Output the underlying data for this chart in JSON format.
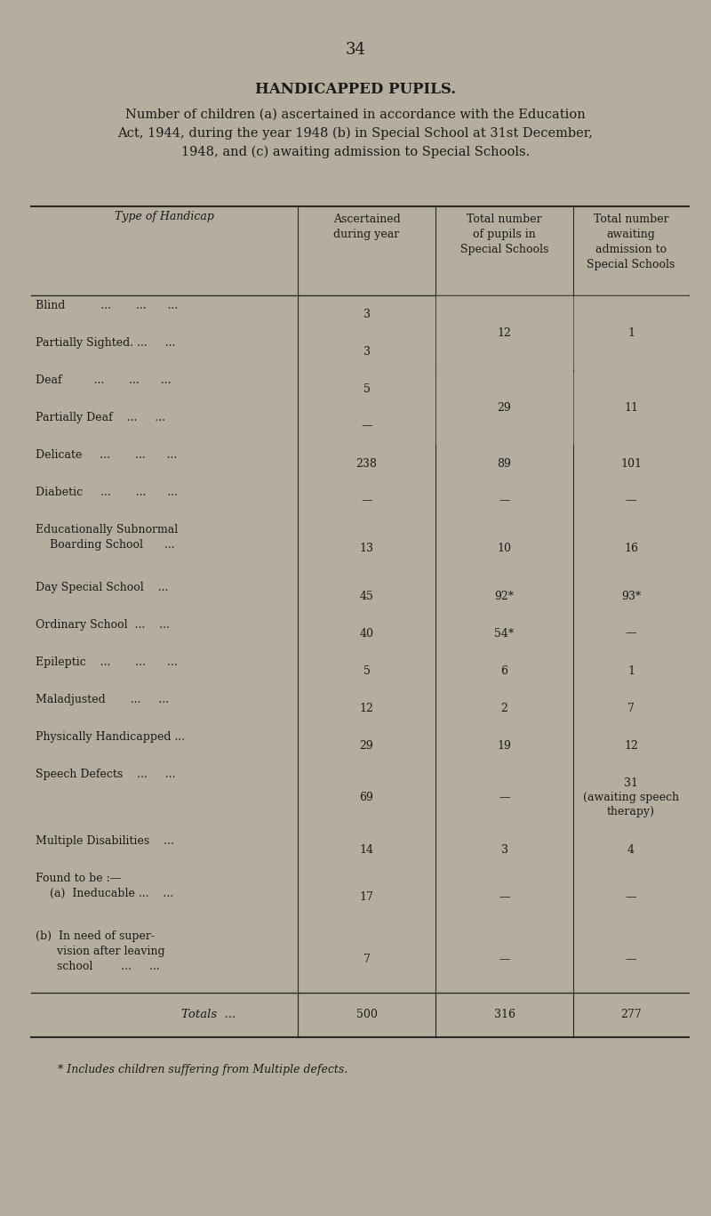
{
  "page_number": "34",
  "title": "HANDICAPPED PUPILS.",
  "subtitle": "Number of children (a) ascertained in accordance with the Education\nAct, 1944, during the year 1948 (b) in Special School at 31st December,\n1948, and (c) awaiting admission to Special Schools.",
  "col_headers": [
    "Type of Handicap",
    "Ascertained\nduring year",
    "Total number\nof pupils in\nSpecial Schools",
    "Total number\nawaiting\nadmission to\nSpecial Schools"
  ],
  "rows": [
    {
      "label": "Blind          ...       ...      ...",
      "col1": "3",
      "col2": "",
      "col3": "",
      "brace_top": true
    },
    {
      "label": "Partially Sighted. ...     ...",
      "col1": "3",
      "col2": "12",
      "col3": "1",
      "brace_bottom": true
    },
    {
      "label": "Deaf         ...       ...      ...",
      "col1": "5",
      "col2": "",
      "col3": "",
      "brace2_top": true
    },
    {
      "label": "Partially Deaf    ...     ...",
      "col1": "—",
      "col2": "29",
      "col3": "11",
      "brace2_bottom": true
    },
    {
      "label": "Delicate     ...       ...      ...",
      "col1": "238",
      "col2": "89",
      "col3": "101"
    },
    {
      "label": "Diabetic     ...       ...      ...",
      "col1": "—",
      "col2": "—",
      "col3": "—"
    },
    {
      "label": "Educationally Subnormal\n    Boarding School      ...",
      "col1": "13",
      "col2": "10",
      "col3": "16"
    },
    {
      "label": "Day Special School    ...",
      "col1": "45",
      "col2": "92*",
      "col3": "93*"
    },
    {
      "label": "Ordinary School  ...    ...",
      "col1": "40",
      "col2": "54*",
      "col3": "—"
    },
    {
      "label": "Epileptic    ...       ...      ...",
      "col1": "5",
      "col2": "6",
      "col3": "1"
    },
    {
      "label": "Maladjusted       ...     ...",
      "col1": "12",
      "col2": "2",
      "col3": "7"
    },
    {
      "label": "Physically Handicapped ...",
      "col1": "29",
      "col2": "19",
      "col3": "12"
    },
    {
      "label": "Speech Defects    ...     ...",
      "col1": "69",
      "col2": "—",
      "col3": "31\n(awaiting speech\ntherapy)"
    },
    {
      "label": "Multiple Disabilities    ...",
      "col1": "14",
      "col2": "3",
      "col3": "4"
    },
    {
      "label": "Found to be :—\n    (a)  Ineducable ...    ...",
      "col1": "17",
      "col2": "—",
      "col3": "—"
    },
    {
      "label": "(b)  In need of super-\n      vision after leaving\n      school        ...     ...",
      "col1": "7",
      "col2": "—",
      "col3": "—"
    }
  ],
  "totals_label": "Totals  ...",
  "totals": [
    "500",
    "316",
    "277"
  ],
  "footnote": "* Includes children suffering from Multiple defects.",
  "bg_color": "#b5ae9f",
  "text_color": "#1a1a1a",
  "line_color": "#2a2a2a"
}
